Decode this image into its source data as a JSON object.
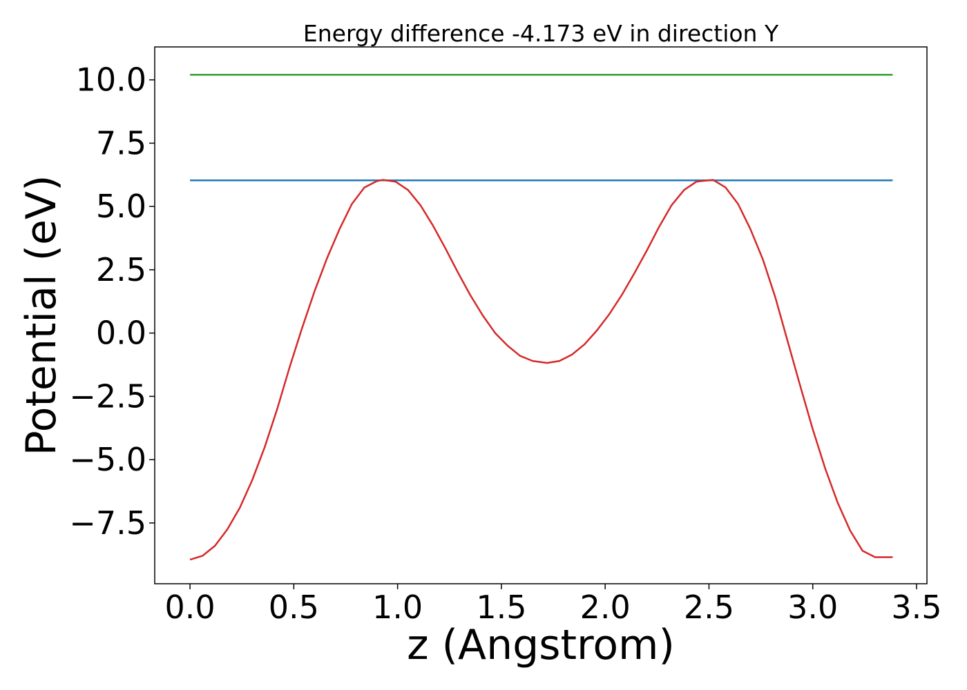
{
  "chart_data": {
    "type": "line",
    "title": "Energy difference -4.173 eV in direction Y",
    "xlabel": "z (Angstrom)",
    "ylabel": "Potential (eV)",
    "xlim": [
      -0.17,
      3.55
    ],
    "ylim": [
      -9.9,
      11.3
    ],
    "x_ticks": [
      0.0,
      0.5,
      1.0,
      1.5,
      2.0,
      2.5,
      3.0,
      3.5
    ],
    "x_tick_labels": [
      "0.0",
      "0.5",
      "1.0",
      "1.5",
      "2.0",
      "2.5",
      "3.0",
      "3.5"
    ],
    "y_ticks": [
      -7.5,
      -5.0,
      -2.5,
      0.0,
      2.5,
      5.0,
      7.5,
      10.0
    ],
    "y_tick_labels": [
      "−7.5",
      "−5.0",
      "−2.5",
      "0.0",
      "2.5",
      "5.0",
      "7.5",
      "10.0"
    ],
    "grid": false,
    "series": [
      {
        "color": "#2ca02c",
        "x": [
          0.0,
          3.385
        ],
        "y": [
          10.2,
          10.2
        ]
      },
      {
        "color": "#1f77b4",
        "x": [
          0.0,
          3.385
        ],
        "y": [
          6.03,
          6.03
        ]
      },
      {
        "color": "#d62728",
        "x": [
          0.0,
          0.06,
          0.12,
          0.18,
          0.24,
          0.3,
          0.36,
          0.42,
          0.48,
          0.54,
          0.6,
          0.66,
          0.72,
          0.78,
          0.84,
          0.9,
          0.93,
          0.99,
          1.05,
          1.11,
          1.17,
          1.23,
          1.29,
          1.35,
          1.41,
          1.47,
          1.53,
          1.59,
          1.65,
          1.72,
          1.78,
          1.84,
          1.9,
          1.96,
          2.02,
          2.08,
          2.14,
          2.2,
          2.26,
          2.32,
          2.38,
          2.44,
          2.52,
          2.58,
          2.64,
          2.7,
          2.76,
          2.82,
          2.88,
          2.94,
          3.0,
          3.06,
          3.12,
          3.18,
          3.24,
          3.3,
          3.385
        ],
        "y": [
          -8.95,
          -8.8,
          -8.4,
          -7.75,
          -6.9,
          -5.8,
          -4.5,
          -3.0,
          -1.35,
          0.2,
          1.65,
          2.95,
          4.1,
          5.1,
          5.75,
          6.0,
          6.05,
          5.98,
          5.65,
          5.05,
          4.25,
          3.35,
          2.4,
          1.5,
          0.7,
          0.0,
          -0.5,
          -0.9,
          -1.1,
          -1.18,
          -1.1,
          -0.85,
          -0.45,
          0.1,
          0.75,
          1.5,
          2.35,
          3.25,
          4.2,
          5.05,
          5.65,
          5.98,
          6.05,
          5.75,
          5.1,
          4.1,
          2.9,
          1.4,
          -0.35,
          -2.1,
          -3.8,
          -5.35,
          -6.7,
          -7.8,
          -8.6,
          -8.85,
          -8.85
        ]
      }
    ]
  }
}
